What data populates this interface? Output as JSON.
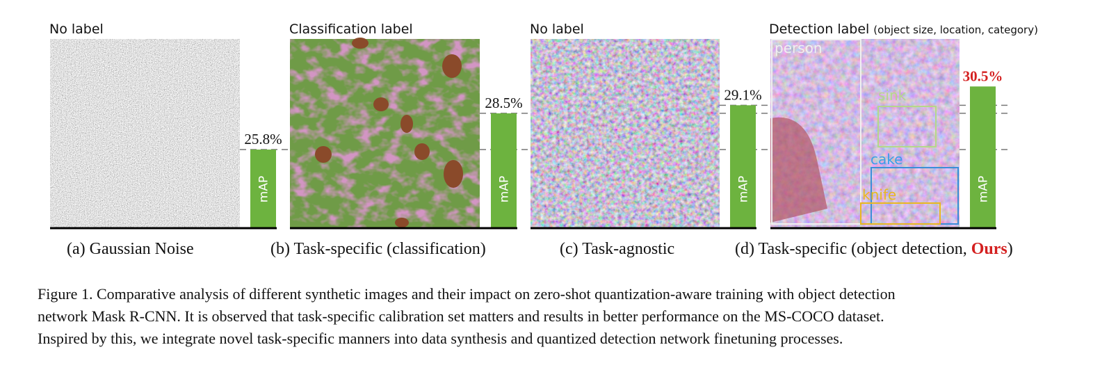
{
  "value_axis": {
    "ylim": [
      20,
      31.5
    ]
  },
  "panels": [
    {
      "header": "No label",
      "value": 25.8,
      "value_label": "25.8%",
      "bar_label": "mAP",
      "caption": "(a)  Gaussian Noise"
    },
    {
      "header": "Classification label",
      "value": 28.5,
      "value_label": "28.5%",
      "bar_label": "mAP",
      "caption": "(b) Task-specific (classification)"
    },
    {
      "header": "No label",
      "value": 29.1,
      "value_label": "29.1%",
      "bar_label": "mAP",
      "caption": "(c) Task-agnostic"
    },
    {
      "header": "Detection label",
      "header_note": "(object size, location, category)",
      "value": 30.5,
      "value_label": "30.5%",
      "bar_label": "mAP",
      "caption": "(d) Task-specific (object detection, ",
      "caption_highlight": "Ours",
      "caption_end": ")",
      "boxes": [
        "person",
        "sink",
        "cake",
        "knife"
      ]
    }
  ],
  "figure_caption": [
    "Figure 1. Comparative analysis of different synthetic images and their impact on zero-shot quantization-aware training with object detection",
    "network Mask R-CNN. It is observed that task-specific calibration set matters and results in better performance on the MS-COCO dataset.",
    "Inspired by this, we integrate novel task-specific manners into data synthesis and quantized detection network finetuning processes."
  ]
}
